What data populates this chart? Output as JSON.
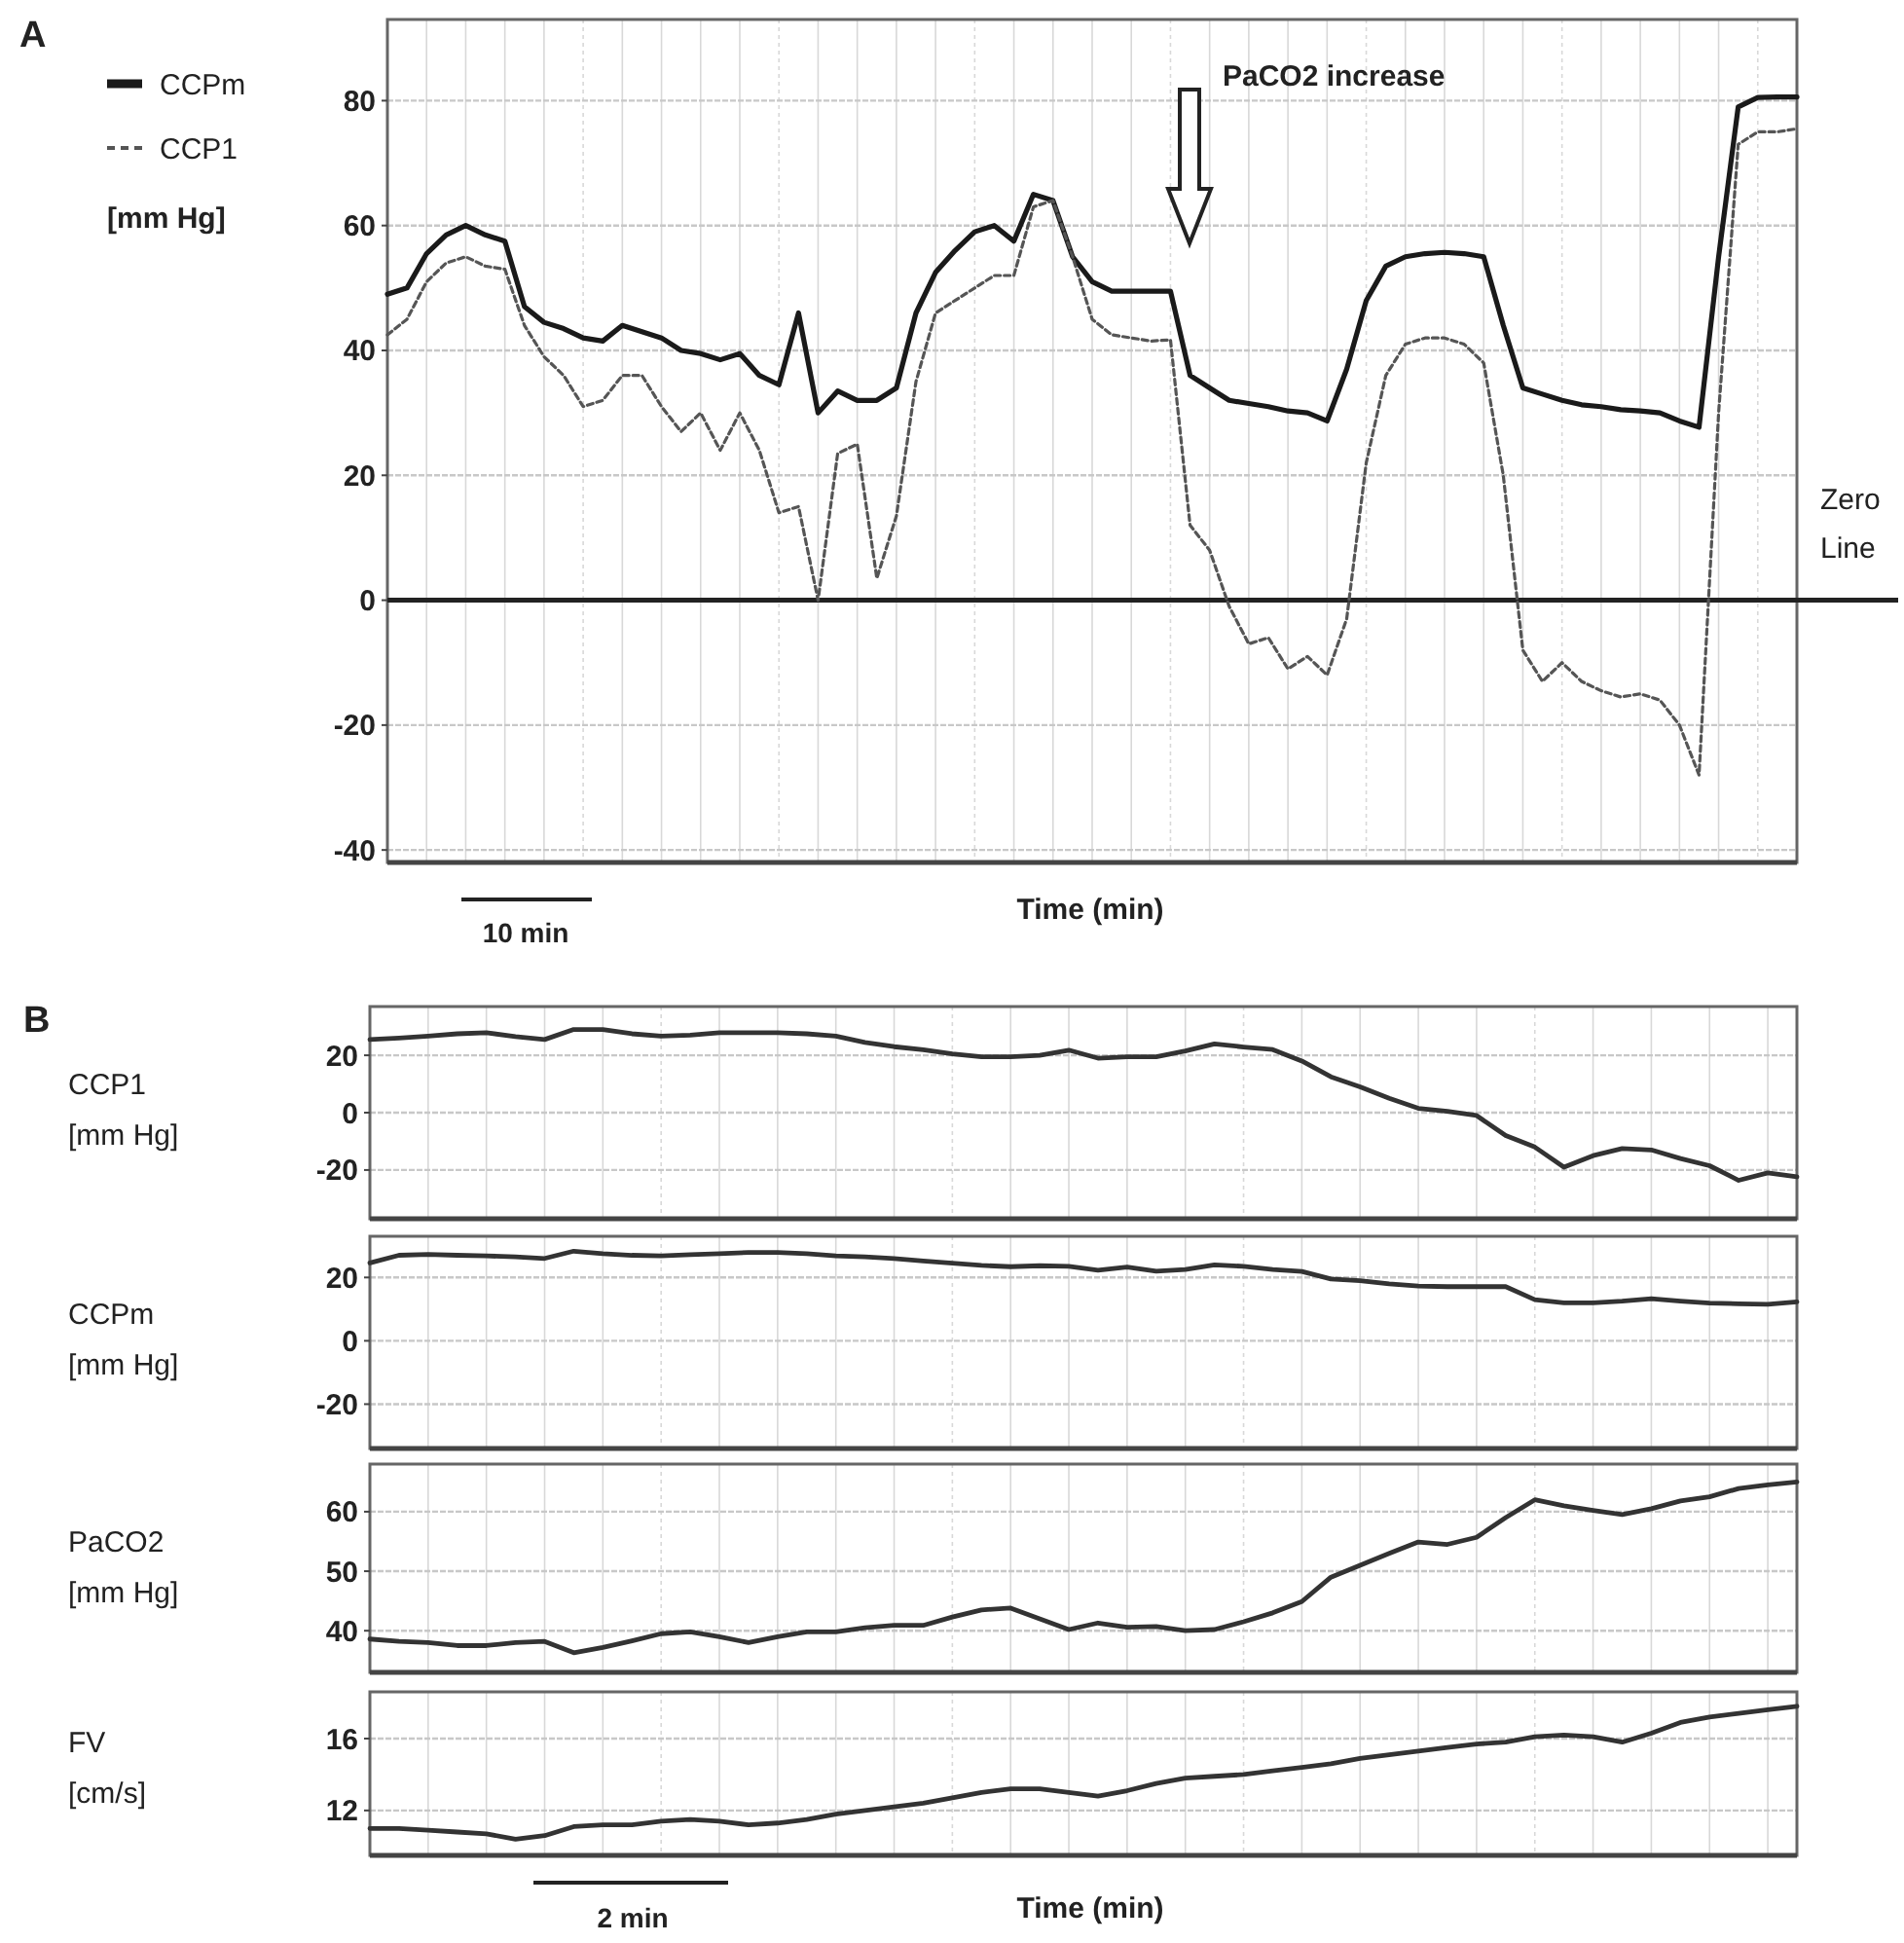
{
  "chart_data": [
    {
      "type": "line",
      "xlabel": "Time (min)",
      "ylabel": "[mm Hg]",
      "legend": "left",
      "grid": true,
      "tick_labels": "y",
      "ylim": [
        -42,
        93
      ],
      "yticks": [
        -40,
        -20,
        0,
        20,
        40,
        60,
        80
      ],
      "annotations": [
        "A",
        "PaCO2 increase",
        "10 min"
      ],
      "ref_lines": [
        {
          "axis": "y",
          "value": 0,
          "label": "Zero Line"
        }
      ],
      "categories": [
        null,
        null,
        null,
        null,
        null,
        null,
        null,
        null,
        null,
        null,
        null,
        null,
        null,
        null,
        null,
        null,
        null,
        null,
        null,
        null,
        null,
        null,
        null,
        null,
        null,
        null,
        null,
        null,
        null,
        null,
        null,
        null,
        null,
        null,
        null,
        null,
        null,
        null,
        null,
        null,
        null,
        null,
        null,
        null,
        null,
        null,
        null,
        null,
        null,
        null,
        null,
        null,
        null,
        null,
        null,
        null,
        null,
        null,
        null,
        null,
        null,
        null,
        null,
        null,
        null,
        null,
        null,
        null,
        null,
        null,
        null,
        null,
        null
      ],
      "series": [
        {
          "name": "CCPm",
          "color": "#1a1a1a",
          "line_style": "solid",
          "values": [
            49,
            50,
            55.5,
            58.5,
            60,
            58.5,
            57.5,
            47,
            44.5,
            43.5,
            42,
            41.5,
            44,
            43,
            42,
            40,
            39.5,
            38.5,
            39.5,
            36,
            34.5,
            46,
            30,
            33.5,
            32,
            32,
            34,
            46,
            52.5,
            56,
            59,
            60,
            57.5,
            65,
            64,
            55,
            51,
            49.5,
            49.5,
            49.5,
            49.5,
            36,
            34,
            32,
            31.5,
            31,
            30.3,
            30,
            28.7,
            37,
            48,
            53.5,
            55,
            55.5,
            55.7,
            55.5,
            55,
            44,
            34,
            33,
            32,
            31.3,
            31,
            30.5,
            30.3,
            30,
            28.7,
            27.7,
            55,
            79,
            80.5,
            80.6,
            80.6
          ]
        },
        {
          "name": "CCP1",
          "color": "#555555",
          "line_style": "dashed",
          "values": [
            42.5,
            45,
            51,
            54,
            55,
            53.5,
            53,
            44,
            39,
            36,
            31,
            32,
            36,
            36,
            31,
            27,
            30,
            24,
            30,
            24,
            14,
            15,
            0,
            23.5,
            25,
            3.5,
            13.5,
            35,
            46,
            48,
            50,
            52,
            52,
            63,
            64,
            55,
            45,
            42.5,
            42,
            41.5,
            41.7,
            12,
            8,
            -1,
            -7,
            -6,
            -11,
            -9,
            -12,
            -3,
            22,
            36,
            41,
            42,
            42,
            41,
            38,
            20,
            -8,
            -13,
            -10,
            -13,
            -14.5,
            -15.5,
            -15,
            -16,
            -20,
            -28,
            30,
            73,
            75,
            75,
            75.5
          ]
        }
      ]
    },
    {
      "type": "line",
      "ylabel": "CCP1 [mm Hg]",
      "grid": true,
      "tick_labels": "y",
      "ylim": [
        -37,
        37
      ],
      "yticks": [
        -20,
        0,
        20
      ],
      "annotations": [
        "B"
      ],
      "categories": [
        null,
        null,
        null,
        null,
        null,
        null,
        null,
        null,
        null,
        null,
        null,
        null,
        null,
        null,
        null,
        null,
        null,
        null,
        null,
        null,
        null,
        null,
        null,
        null,
        null,
        null,
        null,
        null,
        null,
        null,
        null,
        null,
        null,
        null,
        null,
        null,
        null,
        null,
        null,
        null,
        null,
        null,
        null,
        null,
        null,
        null,
        null,
        null,
        null,
        null
      ],
      "series": [
        {
          "color": "#333333",
          "values": [
            25.5,
            26,
            26.7,
            27.5,
            27.9,
            26.5,
            25.5,
            29,
            29,
            27.5,
            26.7,
            27,
            27.9,
            27.9,
            27.9,
            27.5,
            26.7,
            24.5,
            23,
            21.9,
            20.5,
            19.5,
            19.5,
            20,
            21.8,
            19,
            19.5,
            19.5,
            21.5,
            24,
            22.9,
            22,
            18,
            12.5,
            9,
            5,
            1.5,
            0.5,
            -1,
            -8,
            -12,
            -19,
            -15,
            -12.5,
            -13,
            -16,
            -18.5,
            -23.6,
            -21,
            -22.4
          ]
        }
      ]
    },
    {
      "type": "line",
      "ylabel": "CCPm [mm Hg]",
      "grid": true,
      "tick_labels": "y",
      "ylim": [
        -34,
        33
      ],
      "yticks": [
        -20,
        0,
        20
      ],
      "categories": [
        null,
        null,
        null,
        null,
        null,
        null,
        null,
        null,
        null,
        null,
        null,
        null,
        null,
        null,
        null,
        null,
        null,
        null,
        null,
        null,
        null,
        null,
        null,
        null,
        null,
        null,
        null,
        null,
        null,
        null,
        null,
        null,
        null,
        null,
        null,
        null,
        null,
        null,
        null,
        null,
        null,
        null,
        null,
        null,
        null,
        null,
        null,
        null,
        null,
        null
      ],
      "series": [
        {
          "color": "#333333",
          "values": [
            24.6,
            27,
            27.3,
            27,
            26.8,
            26.5,
            26,
            28.3,
            27.5,
            27,
            26.8,
            27.2,
            27.5,
            27.9,
            27.9,
            27.5,
            26.8,
            26.5,
            26,
            25.2,
            24.5,
            23.8,
            23.4,
            23.7,
            23.5,
            22.3,
            23.3,
            22,
            22.5,
            24,
            23.5,
            22.5,
            21.9,
            19.5,
            19,
            18,
            17.3,
            17.1,
            17.1,
            17.1,
            13,
            12,
            12,
            12.5,
            13.3,
            12.5,
            11.9,
            11.7,
            11.5,
            12.3
          ]
        }
      ]
    },
    {
      "type": "line",
      "ylabel": "PaCO2 [mm Hg]",
      "grid": true,
      "tick_labels": "y",
      "ylim": [
        33,
        68
      ],
      "yticks": [
        40,
        50,
        60
      ],
      "categories": [
        null,
        null,
        null,
        null,
        null,
        null,
        null,
        null,
        null,
        null,
        null,
        null,
        null,
        null,
        null,
        null,
        null,
        null,
        null,
        null,
        null,
        null,
        null,
        null,
        null,
        null,
        null,
        null,
        null,
        null,
        null,
        null,
        null,
        null,
        null,
        null,
        null,
        null,
        null,
        null,
        null,
        null,
        null,
        null,
        null,
        null,
        null,
        null,
        null,
        null
      ],
      "series": [
        {
          "color": "#333333",
          "values": [
            38.6,
            38.2,
            38,
            37.5,
            37.5,
            38,
            38.2,
            36.3,
            37.2,
            38.3,
            39.5,
            39.8,
            39,
            38,
            39,
            39.8,
            39.8,
            40.5,
            40.9,
            40.9,
            42.3,
            43.5,
            43.8,
            42,
            40.2,
            41.3,
            40.6,
            40.7,
            40,
            40.2,
            41.5,
            43,
            44.9,
            49,
            51,
            53,
            54.9,
            54.5,
            55.7,
            59,
            62,
            61,
            60.2,
            59.5,
            60.5,
            61.8,
            62.5,
            63.9,
            64.5,
            65
          ]
        }
      ]
    },
    {
      "type": "line",
      "xlabel": "Time (min)",
      "ylabel": "FV [cm/s]",
      "grid": true,
      "tick_labels": "y",
      "ylim": [
        9.5,
        18.6
      ],
      "yticks": [
        12,
        16
      ],
      "annotations": [
        "2 min"
      ],
      "categories": [
        null,
        null,
        null,
        null,
        null,
        null,
        null,
        null,
        null,
        null,
        null,
        null,
        null,
        null,
        null,
        null,
        null,
        null,
        null,
        null,
        null,
        null,
        null,
        null,
        null,
        null,
        null,
        null,
        null,
        null,
        null,
        null,
        null,
        null,
        null,
        null,
        null,
        null,
        null,
        null,
        null,
        null,
        null,
        null,
        null,
        null,
        null,
        null,
        null,
        null
      ],
      "series": [
        {
          "color": "#333333",
          "values": [
            11,
            11,
            10.9,
            10.8,
            10.7,
            10.4,
            10.6,
            11.1,
            11.2,
            11.2,
            11.4,
            11.5,
            11.4,
            11.2,
            11.3,
            11.5,
            11.8,
            12,
            12.2,
            12.4,
            12.7,
            13,
            13.2,
            13.2,
            13,
            12.8,
            13.1,
            13.5,
            13.8,
            13.9,
            14,
            14.2,
            14.4,
            14.6,
            14.9,
            15.1,
            15.3,
            15.5,
            15.7,
            15.8,
            16.1,
            16.2,
            16.1,
            15.8,
            16.3,
            16.9,
            17.2,
            17.4,
            17.6,
            17.8
          ]
        }
      ]
    }
  ]
}
